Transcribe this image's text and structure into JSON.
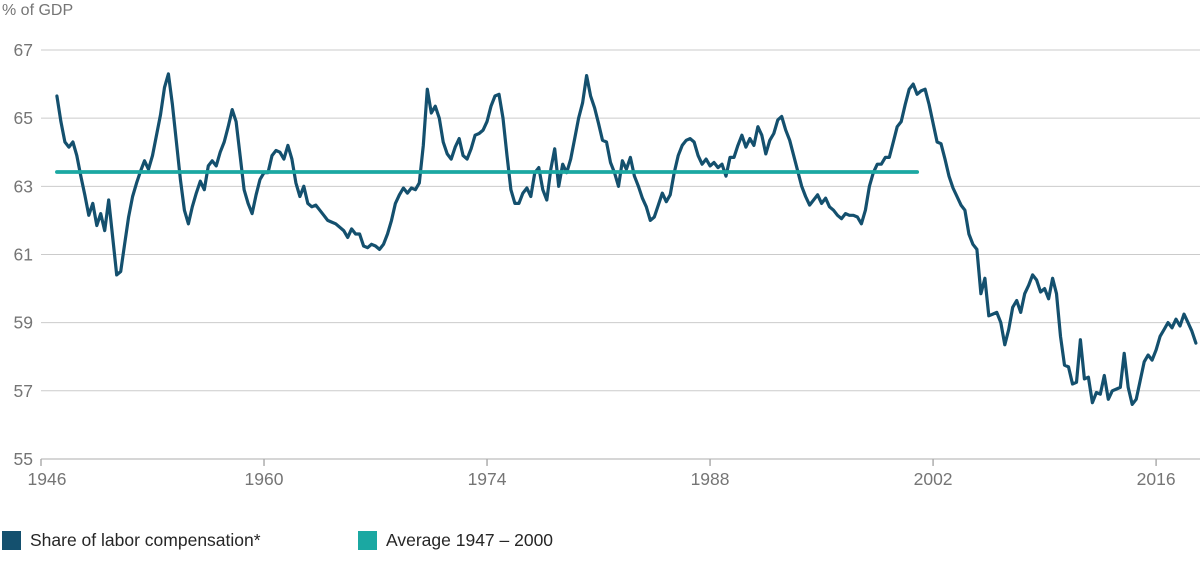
{
  "chart": {
    "y_axis_title": "% of GDP"
  },
  "colors": {
    "labor_share_line": "#14506E",
    "average_line": "#1BA8A2",
    "gridline": "#CBCBCB",
    "axis_line": "#ADADAD",
    "tick_label": "#757575",
    "legend_text": "#262626",
    "background": "#FFFFFF"
  },
  "legend": {
    "items": [
      {
        "label": "Share of labor compensation*",
        "color": "#14506E"
      },
      {
        "label": "Average 1947 – 2000",
        "color": "#1BA8A2"
      }
    ]
  },
  "chart_data": {
    "type": "line",
    "title": "",
    "ylabel": "% of GDP",
    "xlabel": "",
    "ylim": [
      55,
      67
    ],
    "xlim": [
      1946,
      2018.9
    ],
    "grid": "horizontal",
    "legend_position": "bottom",
    "y_ticks": [
      67,
      65,
      63,
      61,
      59,
      57,
      55
    ],
    "x_ticks": [
      1946,
      1960,
      1974,
      1988,
      2002,
      2016
    ],
    "series": [
      {
        "name": "Share of labor compensation*",
        "color": "#14506E",
        "frequency": "quarterly",
        "start_year": 1947,
        "values": [
          65.65,
          64.9,
          64.3,
          64.15,
          64.3,
          63.9,
          63.3,
          62.75,
          62.15,
          62.5,
          61.85,
          62.2,
          61.7,
          62.6,
          61.5,
          60.4,
          60.5,
          61.3,
          62.1,
          62.7,
          63.1,
          63.45,
          63.75,
          63.5,
          63.9,
          64.5,
          65.1,
          65.9,
          66.3,
          65.4,
          64.3,
          63.2,
          62.3,
          61.9,
          62.4,
          62.8,
          63.15,
          62.9,
          63.6,
          63.75,
          63.6,
          64.0,
          64.3,
          64.75,
          65.25,
          64.9,
          63.9,
          62.9,
          62.5,
          62.2,
          62.75,
          63.2,
          63.4,
          63.4,
          63.9,
          64.05,
          64.0,
          63.8,
          64.2,
          63.8,
          63.1,
          62.7,
          63.0,
          62.5,
          62.4,
          62.45,
          62.3,
          62.15,
          62.0,
          61.95,
          61.9,
          61.8,
          61.7,
          61.5,
          61.75,
          61.6,
          61.6,
          61.25,
          61.2,
          61.3,
          61.25,
          61.15,
          61.3,
          61.6,
          62.0,
          62.5,
          62.75,
          62.95,
          62.8,
          62.95,
          62.9,
          63.1,
          64.2,
          65.85,
          65.15,
          65.35,
          65.0,
          64.3,
          63.95,
          63.8,
          64.15,
          64.4,
          63.9,
          63.8,
          64.1,
          64.5,
          64.55,
          64.65,
          64.9,
          65.35,
          65.65,
          65.7,
          65.0,
          63.9,
          62.9,
          62.5,
          62.5,
          62.8,
          62.95,
          62.7,
          63.4,
          63.55,
          62.9,
          62.6,
          63.5,
          64.1,
          63.0,
          63.65,
          63.4,
          63.8,
          64.4,
          65.0,
          65.45,
          66.25,
          65.65,
          65.3,
          64.85,
          64.35,
          64.3,
          63.7,
          63.4,
          63.0,
          63.75,
          63.5,
          63.85,
          63.3,
          63.0,
          62.65,
          62.4,
          62.0,
          62.1,
          62.45,
          62.8,
          62.55,
          62.75,
          63.4,
          63.9,
          64.2,
          64.35,
          64.4,
          64.3,
          63.9,
          63.65,
          63.8,
          63.6,
          63.7,
          63.55,
          63.65,
          63.3,
          63.85,
          63.85,
          64.2,
          64.5,
          64.15,
          64.4,
          64.2,
          64.75,
          64.5,
          63.95,
          64.35,
          64.55,
          64.95,
          65.05,
          64.65,
          64.35,
          63.9,
          63.45,
          63.0,
          62.7,
          62.45,
          62.6,
          62.75,
          62.5,
          62.65,
          62.4,
          62.3,
          62.15,
          62.05,
          62.2,
          62.15,
          62.15,
          62.1,
          61.9,
          62.3,
          63.0,
          63.4,
          63.65,
          63.65,
          63.85,
          63.85,
          64.3,
          64.75,
          64.9,
          65.4,
          65.85,
          66.0,
          65.7,
          65.8,
          65.85,
          65.4,
          64.85,
          64.3,
          64.25,
          63.8,
          63.3,
          62.95,
          62.7,
          62.45,
          62.3,
          61.6,
          61.3,
          61.15,
          59.85,
          60.3,
          59.2,
          59.25,
          59.3,
          59.0,
          58.35,
          58.8,
          59.45,
          59.65,
          59.3,
          59.85,
          60.1,
          60.4,
          60.25,
          59.9,
          60.0,
          59.7,
          60.3,
          59.85,
          58.6,
          57.75,
          57.7,
          57.2,
          57.25,
          58.5,
          57.35,
          57.4,
          56.65,
          56.95,
          56.9,
          57.45,
          56.75,
          57.0,
          57.05,
          57.1,
          58.1,
          57.1,
          56.6,
          56.75,
          57.3,
          57.85,
          58.05,
          57.9,
          58.2,
          58.6,
          58.8,
          59.0,
          58.85,
          59.1,
          58.9,
          59.25,
          59.0,
          58.75,
          58.4
        ]
      },
      {
        "name": "Average 1947 – 2000",
        "type": "horizontal-line",
        "color": "#1BA8A2",
        "value": 63.42,
        "x_start": 1947,
        "x_end": 2001
      }
    ]
  }
}
